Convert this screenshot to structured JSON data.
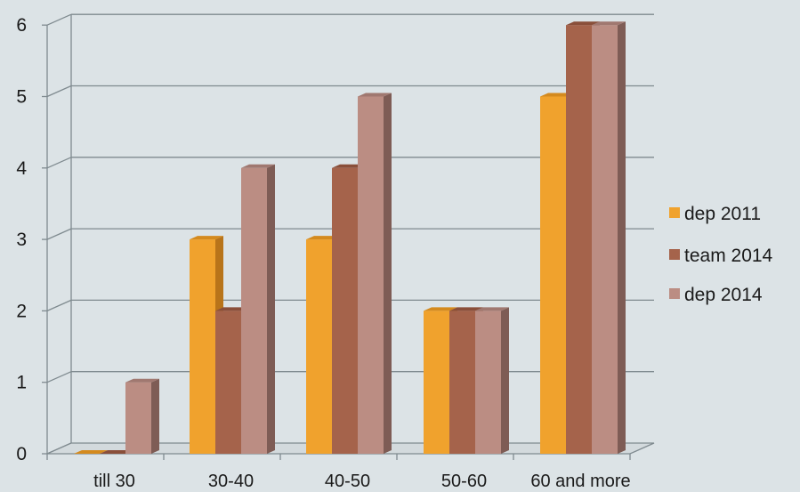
{
  "chart_data": {
    "type": "bar",
    "style": "3d-clustered-column",
    "categories": [
      "till 30",
      "30-40",
      "40-50",
      "50-60",
      "60 and more"
    ],
    "series": [
      {
        "name": "dep 2011",
        "values": [
          0,
          3,
          3,
          2,
          5
        ],
        "color": "#f0a22d",
        "side_color": "#b8741a",
        "top_color": "#d48a1e"
      },
      {
        "name": "team 2014",
        "values": [
          0,
          2,
          4,
          2,
          6
        ],
        "color": "#a5634b",
        "side_color": "#73402e",
        "top_color": "#8a4f3a"
      },
      {
        "name": "dep 2014",
        "values": [
          1,
          4,
          5,
          2,
          6
        ],
        "color": "#bb8d83",
        "side_color": "#7e5c55",
        "top_color": "#a07870"
      }
    ],
    "yticks": [
      "0",
      "1",
      "2",
      "3",
      "4",
      "5",
      "6"
    ],
    "ylim": [
      0,
      6
    ],
    "grid": true,
    "legend_position": "right",
    "title": "",
    "xlabel": "",
    "ylabel": ""
  }
}
